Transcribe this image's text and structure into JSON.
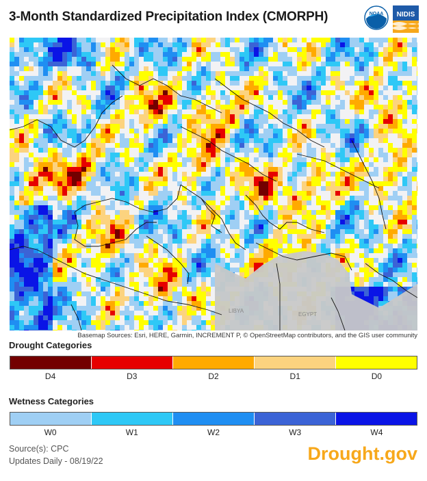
{
  "title": "3-Month Standardized Precipitation Index (CMORPH)",
  "logos": {
    "noaa_text": "NOAA",
    "nidis_text": "NIDIS"
  },
  "map": {
    "basemap_credit": "Basemap Sources: Esri, HERE, Garmin, INCREMENT P, © OpenStreetMap contributors, and the GIS user community",
    "place_labels": [
      "LIBYA",
      "EGYPT"
    ]
  },
  "drought": {
    "title": "Drought Categories",
    "categories": [
      {
        "label": "D4",
        "color": "#730000"
      },
      {
        "label": "D3",
        "color": "#e60000"
      },
      {
        "label": "D2",
        "color": "#ffaa00"
      },
      {
        "label": "D1",
        "color": "#fcd37f"
      },
      {
        "label": "D0",
        "color": "#ffff00"
      }
    ]
  },
  "wetness": {
    "title": "Wetness Categories",
    "categories": [
      {
        "label": "W0",
        "color": "#9fcff4"
      },
      {
        "label": "W1",
        "color": "#2ec8f6"
      },
      {
        "label": "W2",
        "color": "#1f8ef2"
      },
      {
        "label": "W3",
        "color": "#3b63d6"
      },
      {
        "label": "W4",
        "color": "#0a14e6"
      }
    ]
  },
  "footer": {
    "source": "Source(s): CPC",
    "updates": "Updates Daily - 08/19/22",
    "brand": "Drought.gov"
  }
}
